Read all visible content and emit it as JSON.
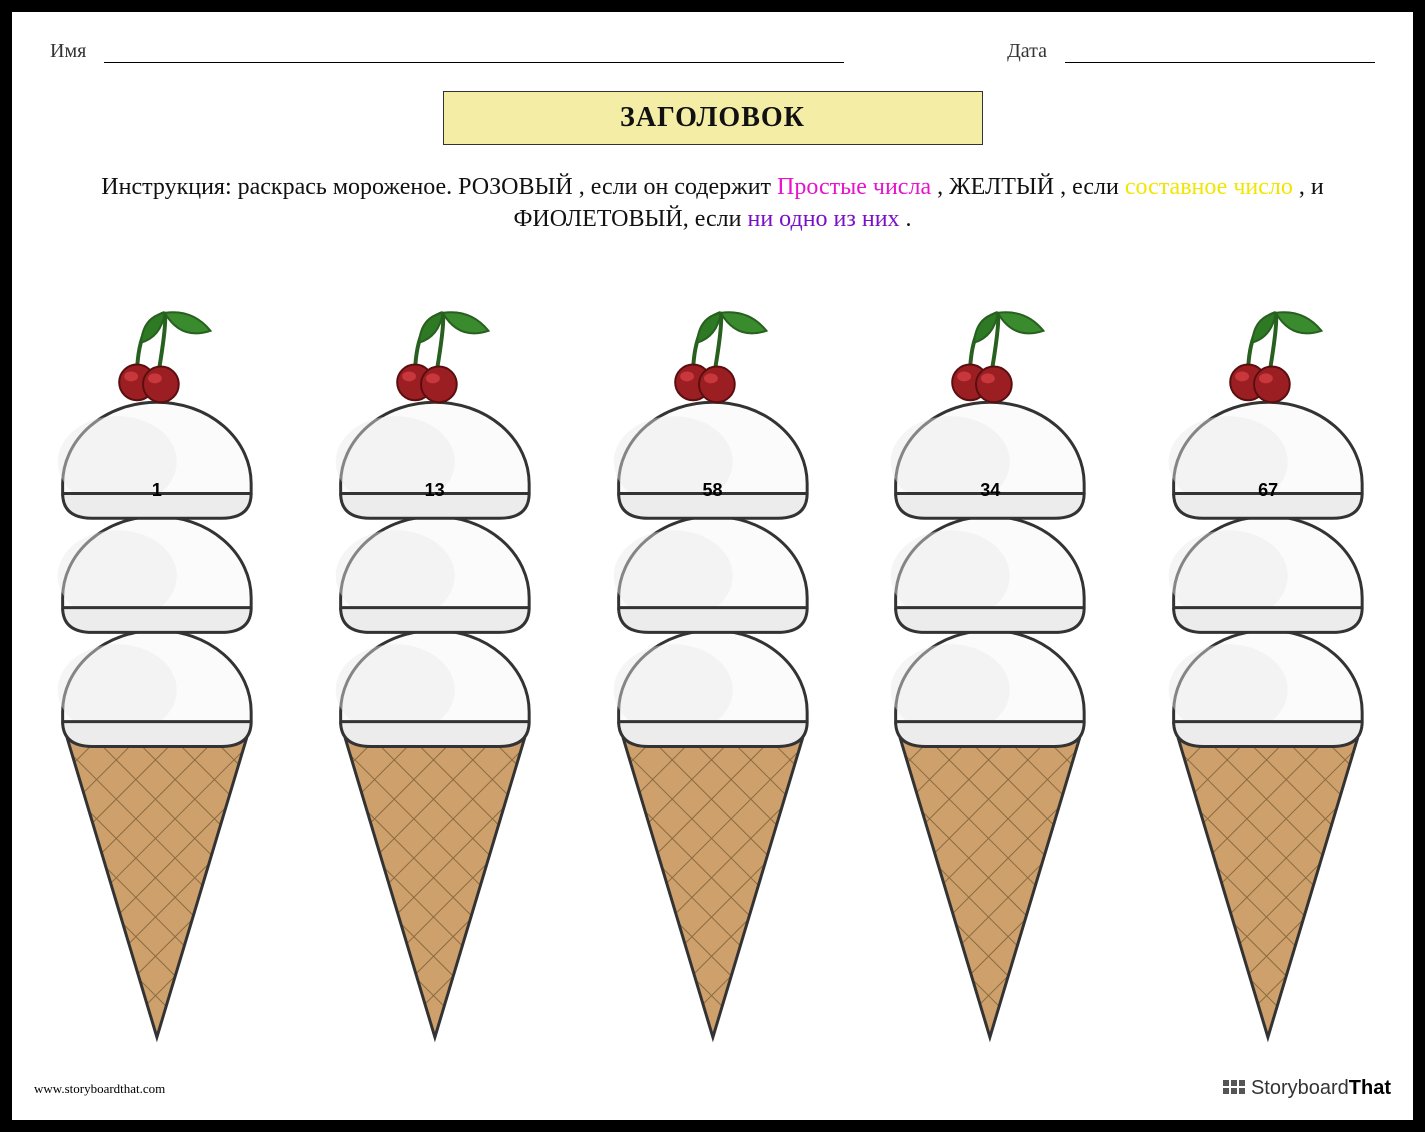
{
  "header": {
    "name_label": "Имя",
    "date_label": "Дата"
  },
  "title": "ЗАГОЛОВОК",
  "instruction": {
    "t1": "Инструкция: раскрась мороженое. РОЗОВЫЙ , если он содержит ",
    "pink": "Простые числа ",
    "t2": ", ЖЕЛТЫЙ , если ",
    "yellow": "составное число ",
    "t3": ", и ФИОЛЕТОВЫЙ, если ",
    "purple": "ни одно из них ",
    "t4": "."
  },
  "cones": [
    {
      "number": "1"
    },
    {
      "number": "13"
    },
    {
      "number": "58"
    },
    {
      "number": "34"
    },
    {
      "number": "67"
    }
  ],
  "colors": {
    "title_bg": "#f4eda6",
    "pink": "#e614cc",
    "yellow": "#f1e600",
    "purple": "#7a0fc9",
    "scoop_fill": "#fbfbfb",
    "scoop_shadow": "#e2e2e2",
    "outline": "#333333",
    "cone_fill": "#cda06c",
    "cone_line": "#8a6a3e",
    "cherry": "#9b1e22",
    "cherry_light": "#c8373c",
    "leaf": "#3a8a2e",
    "leaf_dark": "#27601f",
    "stem": "#27601f"
  },
  "footer": {
    "url": "www.storyboardthat.com",
    "brand1": "Storyboard",
    "brand2": "That"
  }
}
